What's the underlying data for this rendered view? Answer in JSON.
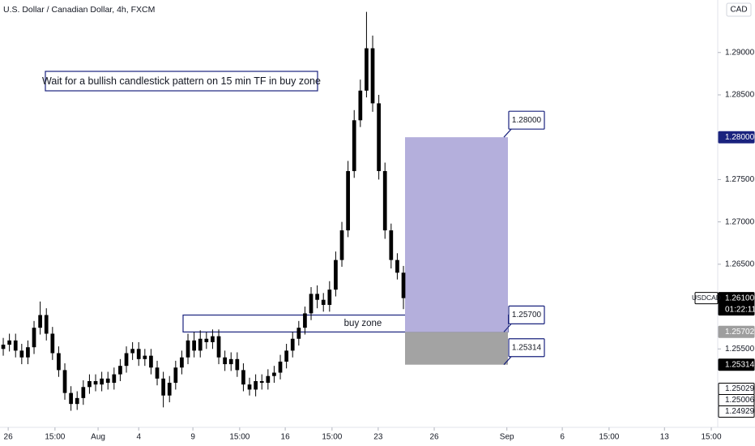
{
  "chart_data": {
    "type": "candlestick",
    "title": "U.S. Dollar / Canadian Dollar, 4h, FXCM",
    "currency": "CAD",
    "color": "#000000",
    "annotation": "Wait for a bullish candlestick pattern on 15 min TF in buy zone",
    "open": [
      1.255,
      1.2555,
      1.256,
      1.2548,
      1.254,
      1.2552,
      1.2575,
      1.259,
      1.2568,
      1.2545,
      1.2525,
      1.2498,
      1.2485,
      1.2492,
      1.2505,
      1.2512,
      1.2508,
      1.2515,
      1.251,
      1.252,
      1.253,
      1.2545,
      1.255,
      1.2538,
      1.2542,
      1.2528,
      1.2515,
      1.2495,
      1.251,
      1.2528,
      1.254,
      1.256,
      1.2548,
      1.2562,
      1.2558,
      1.2565,
      1.254,
      1.2532,
      1.2538,
      1.2525,
      1.2508,
      1.2502,
      1.2512,
      1.251,
      1.2518,
      1.2522,
      1.2535,
      1.2548,
      1.2562,
      1.2575,
      1.2592,
      1.2615,
      1.2608,
      1.2602,
      1.262,
      1.2655,
      1.269,
      1.276,
      1.282,
      1.2855,
      1.2905,
      1.284,
      1.276,
      1.269,
      1.2655,
      1.264
    ],
    "high": [
      1.2563,
      1.2568,
      1.2568,
      1.2556,
      1.256,
      1.2583,
      1.2606,
      1.2598,
      1.2576,
      1.2553,
      1.2533,
      1.2506,
      1.25,
      1.2513,
      1.252,
      1.252,
      1.2523,
      1.2523,
      1.2528,
      1.2538,
      1.2553,
      1.2558,
      1.2558,
      1.255,
      1.255,
      1.2536,
      1.2523,
      1.2518,
      1.2536,
      1.2548,
      1.2568,
      1.257,
      1.2572,
      1.257,
      1.2573,
      1.2573,
      1.2548,
      1.2546,
      1.2546,
      1.2533,
      1.2516,
      1.252,
      1.252,
      1.2526,
      1.253,
      1.2543,
      1.2556,
      1.257,
      1.2583,
      1.26,
      1.2623,
      1.2625,
      1.2616,
      1.263,
      1.2665,
      1.27,
      1.2772,
      1.2832,
      1.2868,
      1.2948,
      1.292,
      1.285,
      1.277,
      1.2698,
      1.2663,
      1.2648
    ],
    "low": [
      1.2542,
      1.2547,
      1.254,
      1.2532,
      1.2532,
      1.2544,
      1.2567,
      1.256,
      1.2537,
      1.2517,
      1.249,
      1.2477,
      1.2478,
      1.2484,
      1.2497,
      1.25,
      1.25,
      1.2502,
      1.2502,
      1.2512,
      1.2522,
      1.2537,
      1.253,
      1.253,
      1.252,
      1.2507,
      1.2481,
      1.2487,
      1.2502,
      1.252,
      1.2532,
      1.254,
      1.254,
      1.255,
      1.255,
      1.2532,
      1.2524,
      1.2524,
      1.2517,
      1.25,
      1.2495,
      1.2494,
      1.2502,
      1.2502,
      1.251,
      1.2514,
      1.2527,
      1.254,
      1.2554,
      1.2567,
      1.2584,
      1.2598,
      1.2594,
      1.2594,
      1.2612,
      1.2647,
      1.2682,
      1.2752,
      1.2812,
      1.2847,
      1.283,
      1.275,
      1.268,
      1.2645,
      1.2632,
      1.2597
    ],
    "close": [
      1.2555,
      1.256,
      1.2548,
      1.254,
      1.2552,
      1.2575,
      1.259,
      1.2568,
      1.2545,
      1.2525,
      1.2498,
      1.2485,
      1.2492,
      1.2505,
      1.2512,
      1.2508,
      1.2515,
      1.251,
      1.252,
      1.253,
      1.2545,
      1.255,
      1.2538,
      1.2542,
      1.2528,
      1.2515,
      1.2495,
      1.251,
      1.2528,
      1.254,
      1.256,
      1.2548,
      1.2562,
      1.2558,
      1.2565,
      1.254,
      1.2532,
      1.2538,
      1.2525,
      1.2508,
      1.2502,
      1.2512,
      1.251,
      1.2518,
      1.2522,
      1.2535,
      1.2548,
      1.2562,
      1.2575,
      1.2592,
      1.2615,
      1.2608,
      1.2602,
      1.262,
      1.2655,
      1.269,
      1.276,
      1.282,
      1.2855,
      1.2905,
      1.284,
      1.276,
      1.269,
      1.2655,
      1.264,
      1.261
    ],
    "xlim": [
      -0.53,
      116.05
    ],
    "xticks": [
      {
        "value": 0.8,
        "label": "26"
      },
      {
        "value": 8.4,
        "label": "15:00"
      },
      {
        "value": 15.4,
        "label": "Aug"
      },
      {
        "value": 22,
        "label": "4"
      },
      {
        "value": 30.8,
        "label": "9"
      },
      {
        "value": 38.4,
        "label": "15:00"
      },
      {
        "value": 45.8,
        "label": "16"
      },
      {
        "value": 53.4,
        "label": "15:00"
      },
      {
        "value": 60.9,
        "label": "23"
      },
      {
        "value": 70,
        "label": "26"
      },
      {
        "value": 81.8,
        "label": "Sep"
      },
      {
        "value": 90.8,
        "label": "6"
      },
      {
        "value": 98.4,
        "label": "15:00"
      },
      {
        "value": 107.4,
        "label": "13"
      },
      {
        "value": 115,
        "label": "15:00"
      }
    ],
    "ylim": [
      1.24574,
      1.2962
    ],
    "yticks": [
      {
        "value": 1.29,
        "label": "1.29000"
      },
      {
        "value": 1.285,
        "label": "1.28500"
      },
      {
        "value": 1.275,
        "label": "1.27500"
      },
      {
        "value": 1.27,
        "label": "1.27000"
      },
      {
        "value": 1.265,
        "label": "1.26500"
      },
      {
        "value": 1.255,
        "label": "1.25500"
      }
    ],
    "grid": false,
    "buy_zone": {
      "label": "buy zone",
      "top": 1.259,
      "bottom": 1.257
    },
    "position": {
      "target": 1.28,
      "target_label": "1.28000",
      "entry": 1.257,
      "entry_label": "1.25700",
      "stop": 1.25314,
      "stop_label": "1.25314",
      "profit_color": "#b4afdc",
      "loss_color": "#a3a3a3"
    },
    "current_price": {
      "symbol": "USDCAD",
      "countdown": "01:22:11"
    },
    "price_tags": [
      {
        "value": 1.28,
        "label": "1.28000",
        "color": "#1a237e",
        "outline": false
      },
      {
        "value": 1.261,
        "label": "1.26100",
        "color": "#000000",
        "outline": false
      },
      {
        "value": 1.25702,
        "label": "1.25702",
        "color": "#9e9e9e",
        "outline": false
      },
      {
        "value": 1.25314,
        "label": "1.25314",
        "color": "#000000",
        "outline": false
      },
      {
        "value": 1.25029,
        "label": "1.25029",
        "color": "#000000",
        "outline": true
      },
      {
        "value": 1.25006,
        "label": "1.25006",
        "color": "#000000",
        "outline": true
      },
      {
        "value": 1.24929,
        "label": "1.24929",
        "color": "#000000",
        "outline": true
      }
    ]
  }
}
